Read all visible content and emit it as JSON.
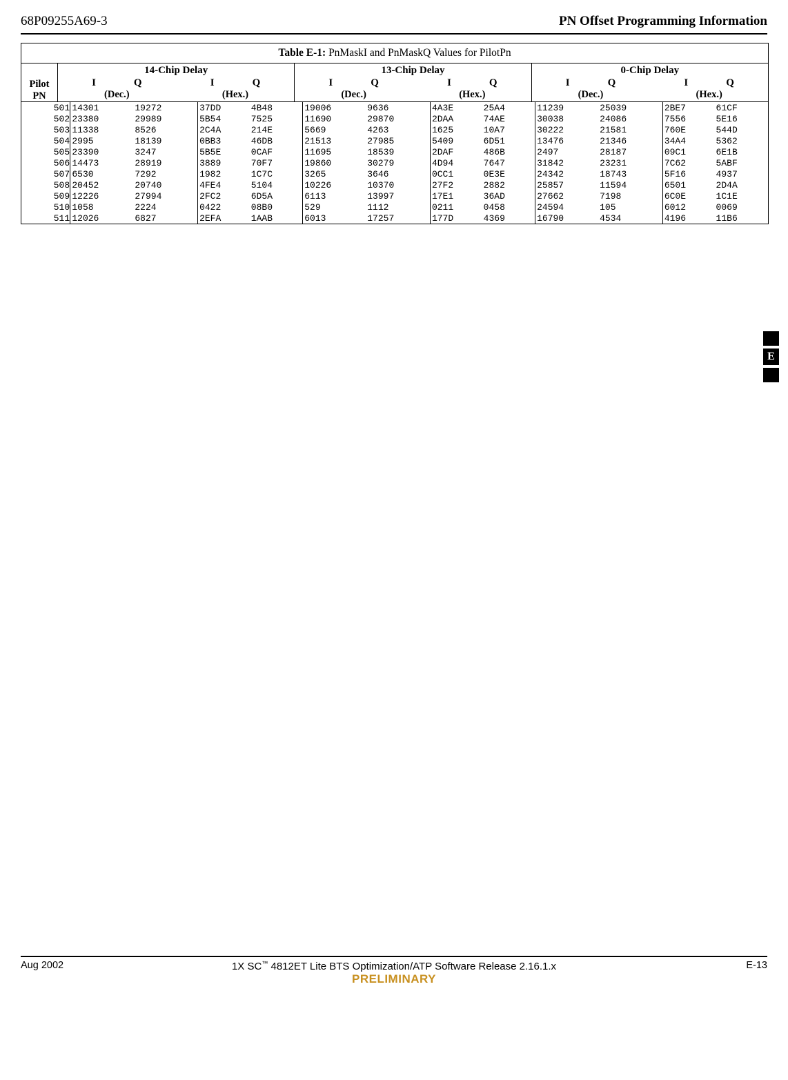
{
  "page": {
    "header_left": "68P09255A69-3",
    "header_right": "PN Offset Programming Information",
    "side_tab_letter": "E",
    "footer_left": "Aug 2002",
    "footer_center_line1_pre": "1X SC",
    "footer_center_line1_tm": "™",
    "footer_center_line1_post": " 4812ET Lite BTS Optimization/ATP Software Release 2.16.1.x",
    "footer_center_prelim": "PRELIMINARY",
    "footer_right": "E-13"
  },
  "table": {
    "title_bold": "Table E-1:",
    "title_rest": " PnMaskI and PnMaskQ Values for PilotPn",
    "delay_labels": [
      "14-Chip  Delay",
      "13-Chip  Delay",
      "0-Chip  Delay"
    ],
    "I_label": "I",
    "Q_label": "Q",
    "dec_label": "(Dec.)",
    "hex_label": "(Hex.)",
    "pilot_label_1": "Pilot",
    "pilot_label_2": "PN",
    "rows": [
      {
        "pn": "501",
        "d14": {
          "dec": [
            "14301",
            "19272"
          ],
          "hex": [
            "37DD",
            "4B48"
          ]
        },
        "d13": {
          "dec": [
            "19006",
            "9636"
          ],
          "hex": [
            "4A3E",
            "25A4"
          ]
        },
        "d0": {
          "dec": [
            "11239",
            "25039"
          ],
          "hex": [
            "2BE7",
            "61CF"
          ]
        }
      },
      {
        "pn": "502",
        "d14": {
          "dec": [
            "23380",
            "29989"
          ],
          "hex": [
            "5B54",
            "7525"
          ]
        },
        "d13": {
          "dec": [
            "11690",
            "29870"
          ],
          "hex": [
            "2DAA",
            "74AE"
          ]
        },
        "d0": {
          "dec": [
            "30038",
            "24086"
          ],
          "hex": [
            "7556",
            "5E16"
          ]
        }
      },
      {
        "pn": "503",
        "d14": {
          "dec": [
            "11338",
            "8526"
          ],
          "hex": [
            "2C4A",
            "214E"
          ]
        },
        "d13": {
          "dec": [
            "5669",
            "4263"
          ],
          "hex": [
            "1625",
            "10A7"
          ]
        },
        "d0": {
          "dec": [
            "30222",
            "21581"
          ],
          "hex": [
            "760E",
            "544D"
          ]
        }
      },
      {
        "pn": "504",
        "d14": {
          "dec": [
            "2995",
            "18139"
          ],
          "hex": [
            "0BB3",
            "46DB"
          ]
        },
        "d13": {
          "dec": [
            "21513",
            "27985"
          ],
          "hex": [
            "5409",
            "6D51"
          ]
        },
        "d0": {
          "dec": [
            "13476",
            "21346"
          ],
          "hex": [
            "34A4",
            "5362"
          ]
        }
      },
      {
        "pn": "505",
        "d14": {
          "dec": [
            "23390",
            "3247"
          ],
          "hex": [
            "5B5E",
            "0CAF"
          ]
        },
        "d13": {
          "dec": [
            "11695",
            "18539"
          ],
          "hex": [
            "2DAF",
            "486B"
          ]
        },
        "d0": {
          "dec": [
            "2497",
            "28187"
          ],
          "hex": [
            "09C1",
            "6E1B"
          ]
        }
      },
      {
        "pn": "506",
        "d14": {
          "dec": [
            "14473",
            "28919"
          ],
          "hex": [
            "3889",
            "70F7"
          ]
        },
        "d13": {
          "dec": [
            "19860",
            "30279"
          ],
          "hex": [
            "4D94",
            "7647"
          ]
        },
        "d0": {
          "dec": [
            "31842",
            "23231"
          ],
          "hex": [
            "7C62",
            "5ABF"
          ]
        }
      },
      {
        "pn": "507",
        "d14": {
          "dec": [
            "6530",
            "7292"
          ],
          "hex": [
            "1982",
            "1C7C"
          ]
        },
        "d13": {
          "dec": [
            "3265",
            "3646"
          ],
          "hex": [
            "0CC1",
            "0E3E"
          ]
        },
        "d0": {
          "dec": [
            "24342",
            "18743"
          ],
          "hex": [
            "5F16",
            "4937"
          ]
        }
      },
      {
        "pn": "508",
        "d14": {
          "dec": [
            "20452",
            "20740"
          ],
          "hex": [
            "4FE4",
            "5104"
          ]
        },
        "d13": {
          "dec": [
            "10226",
            "10370"
          ],
          "hex": [
            "27F2",
            "2882"
          ]
        },
        "d0": {
          "dec": [
            "25857",
            "11594"
          ],
          "hex": [
            "6501",
            "2D4A"
          ]
        }
      },
      {
        "pn": "509",
        "d14": {
          "dec": [
            "12226",
            "27994"
          ],
          "hex": [
            "2FC2",
            "6D5A"
          ]
        },
        "d13": {
          "dec": [
            "6113",
            "13997"
          ],
          "hex": [
            "17E1",
            "36AD"
          ]
        },
        "d0": {
          "dec": [
            "27662",
            "7198"
          ],
          "hex": [
            "6C0E",
            "1C1E"
          ]
        }
      },
      {
        "pn": "510",
        "d14": {
          "dec": [
            "1058",
            "2224"
          ],
          "hex": [
            "0422",
            "08B0"
          ]
        },
        "d13": {
          "dec": [
            "529",
            "1112"
          ],
          "hex": [
            "0211",
            "0458"
          ]
        },
        "d0": {
          "dec": [
            "24594",
            "105"
          ],
          "hex": [
            "6012",
            "0069"
          ]
        }
      },
      {
        "pn": "511",
        "d14": {
          "dec": [
            "12026",
            "6827"
          ],
          "hex": [
            "2EFA",
            "1AAB"
          ]
        },
        "d13": {
          "dec": [
            "6013",
            "17257"
          ],
          "hex": [
            "177D",
            "4369"
          ]
        },
        "d0": {
          "dec": [
            "16790",
            "4534"
          ],
          "hex": [
            "4196",
            "11B6"
          ]
        }
      }
    ]
  },
  "style": {
    "border_color": "#000000",
    "background": "#ffffff",
    "mono_font": "Courier New",
    "serif_font": "Times New Roman",
    "prelim_color": "#c89020"
  }
}
